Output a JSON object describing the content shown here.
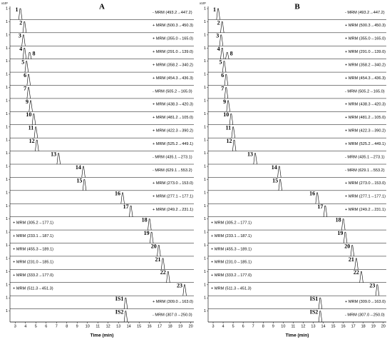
{
  "chart_data": [
    {
      "type": "chromatogram",
      "title": "A",
      "y_unit": "x10⁶",
      "x_label": "Time (min)",
      "xlim": [
        2.5,
        20.3
      ],
      "xticks": [
        3,
        4,
        5,
        6,
        7,
        8,
        9,
        10,
        11,
        12,
        13,
        14,
        15,
        16,
        17,
        18,
        19,
        20
      ],
      "ylim": [
        0,
        1.2
      ],
      "yticks": [
        1
      ],
      "rows": [
        {
          "transition": "- MRM (493.2→447.2)",
          "peaks": [
            {
              "label": "1",
              "x": 3.5,
              "y": 1.0
            }
          ]
        },
        {
          "transition": "+ MRM (500.3→450.3)",
          "peaks": [
            {
              "label": "2",
              "x": 3.9,
              "y": 1.0
            }
          ]
        },
        {
          "transition": "+ MRM (355.0→165.0)",
          "peaks": [
            {
              "label": "3",
              "x": 3.8,
              "y": 1.0
            }
          ]
        },
        {
          "transition": "+ MRM (291.0→139.0)",
          "peaks": [
            {
              "label": "4",
              "x": 3.9,
              "y": 1.0
            },
            {
              "label": "8",
              "x": 4.4,
              "y": 0.6
            }
          ]
        },
        {
          "transition": "+ MRM (358.2→340.2)",
          "peaks": [
            {
              "label": "5",
              "x": 4.1,
              "y": 1.0
            }
          ]
        },
        {
          "transition": "+ MRM (454.3→436.3)",
          "peaks": [
            {
              "label": "6",
              "x": 4.3,
              "y": 1.0
            }
          ]
        },
        {
          "transition": "- MRM (505.2→165.0)",
          "peaks": [
            {
              "label": "7",
              "x": 4.3,
              "y": 1.0
            }
          ]
        },
        {
          "transition": "+ MRM (438.3→420.3)",
          "peaks": [
            {
              "label": "9",
              "x": 4.5,
              "y": 1.0
            }
          ]
        },
        {
          "transition": "+ MRM (481.2→105.0)",
          "peaks": [
            {
              "label": "10",
              "x": 4.8,
              "y": 1.0
            }
          ]
        },
        {
          "transition": "+ MRM (422.3→390.2)",
          "peaks": [
            {
              "label": "11",
              "x": 5.0,
              "y": 1.0
            }
          ]
        },
        {
          "transition": "+ MRM (525.2→449.1)",
          "peaks": [
            {
              "label": "12",
              "x": 5.1,
              "y": 1.0
            }
          ]
        },
        {
          "transition": "- MRM (435.1→273.1)",
          "peaks": [
            {
              "label": "13",
              "x": 7.2,
              "y": 1.0
            }
          ]
        },
        {
          "transition": "- MRM (629.1→553.2)",
          "peaks": [
            {
              "label": "14",
              "x": 9.6,
              "y": 1.0
            }
          ]
        },
        {
          "transition": "+ MRM (273.0→153.0)",
          "peaks": [
            {
              "label": "15",
              "x": 9.7,
              "y": 1.0
            }
          ]
        },
        {
          "transition": "+ MRM (277.1→177.1)",
          "peaks": [
            {
              "label": "16",
              "x": 13.4,
              "y": 1.0
            }
          ]
        },
        {
          "transition": "+ MRM (249.2→231.1)",
          "peaks": [
            {
              "label": "17",
              "x": 14.2,
              "y": 1.0
            }
          ]
        },
        {
          "transition": "+ MRM (305.2→177.1)",
          "peaks": [
            {
              "label": "18",
              "x": 16.0,
              "y": 1.0
            }
          ]
        },
        {
          "transition": "+ MRM (233.1→187.1)",
          "peaks": [
            {
              "label": "19",
              "x": 16.2,
              "y": 1.0
            }
          ]
        },
        {
          "transition": "+ MRM (455.3→189.1)",
          "peaks": [
            {
              "label": "20",
              "x": 16.9,
              "y": 1.0
            }
          ]
        },
        {
          "transition": "+ MRM (231.0→185.1)",
          "peaks": [
            {
              "label": "21",
              "x": 17.3,
              "y": 1.0
            }
          ]
        },
        {
          "transition": "+ MRM (333.2→177.0)",
          "peaks": [
            {
              "label": "22",
              "x": 17.8,
              "y": 1.0
            }
          ]
        },
        {
          "transition": "+ MRM (511.3→451.3)",
          "peaks": [
            {
              "label": "23",
              "x": 19.4,
              "y": 1.0
            }
          ]
        },
        {
          "transition": "+ MRM (309.0→163.0)",
          "peaks": [
            {
              "label": "IS1",
              "x": 13.7,
              "y": 1.0
            }
          ]
        },
        {
          "transition": "- MRM (307.0→250.0)",
          "peaks": [
            {
              "label": "IS2",
              "x": 13.7,
              "y": 1.0
            }
          ]
        }
      ]
    },
    {
      "type": "chromatogram",
      "title": "B",
      "y_unit": "x10⁶",
      "x_label": "Time (min)",
      "xlim": [
        2.5,
        20.3
      ],
      "xticks": [
        3,
        4,
        5,
        6,
        7,
        8,
        9,
        10,
        11,
        12,
        13,
        14,
        15,
        16,
        17,
        18,
        19,
        20
      ],
      "ylim": [
        0,
        1.2
      ],
      "yticks": [
        1
      ],
      "rows": [
        {
          "transition": "- MRM (493.2→447.2)",
          "peaks": [
            {
              "label": "1",
              "x": 3.5,
              "y": 1.0
            }
          ]
        },
        {
          "transition": "+ MRM (500.3→450.3)",
          "peaks": [
            {
              "label": "2",
              "x": 3.9,
              "y": 1.0
            }
          ]
        },
        {
          "transition": "+ MRM (355.0→165.0)",
          "peaks": [
            {
              "label": "3",
              "x": 3.8,
              "y": 1.0
            }
          ]
        },
        {
          "transition": "+ MRM (291.0→139.0)",
          "peaks": [
            {
              "label": "4",
              "x": 3.9,
              "y": 1.0
            },
            {
              "label": "8",
              "x": 4.4,
              "y": 0.6
            }
          ]
        },
        {
          "transition": "+ MRM (358.2→340.2)",
          "peaks": [
            {
              "label": "5",
              "x": 4.1,
              "y": 1.0
            }
          ]
        },
        {
          "transition": "+ MRM (454.3→436.3)",
          "peaks": [
            {
              "label": "6",
              "x": 4.3,
              "y": 1.0
            }
          ]
        },
        {
          "transition": "- MRM (505.2→165.0)",
          "peaks": [
            {
              "label": "7",
              "x": 4.3,
              "y": 1.0
            }
          ]
        },
        {
          "transition": "+ MRM (438.3→420.3)",
          "peaks": [
            {
              "label": "9",
              "x": 4.5,
              "y": 1.0
            }
          ]
        },
        {
          "transition": "+ MRM (481.2→105.0)",
          "peaks": [
            {
              "label": "10",
              "x": 4.8,
              "y": 1.0
            }
          ]
        },
        {
          "transition": "+ MRM (422.3→390.2)",
          "peaks": [
            {
              "label": "11",
              "x": 5.0,
              "y": 1.0
            }
          ]
        },
        {
          "transition": "+ MRM (525.2→449.1)",
          "peaks": [
            {
              "label": "12",
              "x": 5.1,
              "y": 1.0
            }
          ]
        },
        {
          "transition": "- MRM (435.1→273.1)",
          "peaks": [
            {
              "label": "13",
              "x": 7.2,
              "y": 1.0
            }
          ]
        },
        {
          "transition": "- MRM (629.1→553.2)",
          "peaks": [
            {
              "label": "14",
              "x": 9.6,
              "y": 1.0
            }
          ]
        },
        {
          "transition": "+ MRM (273.0→153.0)",
          "peaks": [
            {
              "label": "15",
              "x": 9.7,
              "y": 1.0
            }
          ]
        },
        {
          "transition": "+ MRM (277.1→177.1)",
          "peaks": [
            {
              "label": "16",
              "x": 13.4,
              "y": 1.0
            }
          ]
        },
        {
          "transition": "+ MRM (249.2→231.1)",
          "peaks": [
            {
              "label": "17",
              "x": 14.2,
              "y": 1.0
            }
          ]
        },
        {
          "transition": "+ MRM (305.2→177.1)",
          "peaks": [
            {
              "label": "18",
              "x": 16.0,
              "y": 1.0
            }
          ]
        },
        {
          "transition": "+ MRM (233.1→187.1)",
          "peaks": [
            {
              "label": "19",
              "x": 16.2,
              "y": 1.0
            }
          ]
        },
        {
          "transition": "+ MRM (455.3→189.1)",
          "peaks": [
            {
              "label": "20",
              "x": 16.9,
              "y": 1.0
            }
          ]
        },
        {
          "transition": "+ MRM (231.0→185.1)",
          "peaks": [
            {
              "label": "21",
              "x": 17.3,
              "y": 1.0
            }
          ]
        },
        {
          "transition": "+ MRM (333.2→177.0)",
          "peaks": [
            {
              "label": "22",
              "x": 17.8,
              "y": 1.0
            }
          ]
        },
        {
          "transition": "+ MRM (511.3→451.3)",
          "peaks": [
            {
              "label": "23",
              "x": 19.4,
              "y": 1.0
            }
          ]
        },
        {
          "transition": "+ MRM (309.0→163.0)",
          "peaks": [
            {
              "label": "IS1",
              "x": 13.7,
              "y": 1.0
            }
          ]
        },
        {
          "transition": "- MRM (307.0→250.0)",
          "peaks": [
            {
              "label": "IS2",
              "x": 13.7,
              "y": 1.0
            }
          ]
        }
      ]
    }
  ]
}
